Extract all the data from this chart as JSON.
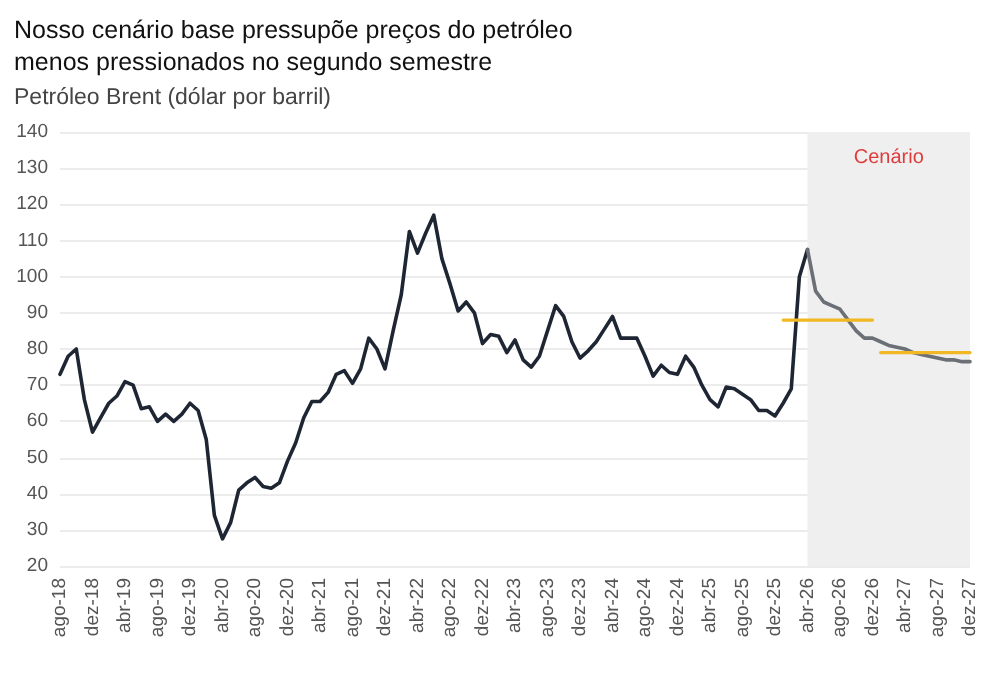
{
  "chart_data": {
    "type": "line",
    "title": "Nosso cenário base pressupõe preços do petróleo menos pressionados no segundo semestre",
    "subtitle": "Petróleo Brent (dólar por barril)",
    "categories": [
      "ago-18",
      null,
      null,
      null,
      "dez-18",
      null,
      null,
      null,
      "abr-19",
      null,
      null,
      null,
      "ago-19",
      null,
      null,
      null,
      "dez-19",
      null,
      null,
      null,
      "abr-20",
      null,
      null,
      null,
      "ago-20",
      null,
      null,
      null,
      "dez-20",
      null,
      null,
      null,
      "abr-21",
      null,
      null,
      null,
      "ago-21",
      null,
      null,
      null,
      "dez-21",
      null,
      null,
      null,
      "abr-22",
      null,
      null,
      null,
      "ago-22",
      null,
      null,
      null,
      "dez-22",
      null,
      null,
      null,
      "abr-23",
      null,
      null,
      null,
      "ago-23",
      null,
      null,
      null,
      "dez-23",
      null,
      null,
      null,
      "abr-24",
      null,
      null,
      null,
      "ago-24",
      null,
      null,
      null,
      "dez-24",
      null,
      null,
      null,
      "abr-25",
      null,
      null,
      null,
      "ago-25",
      null,
      null,
      null,
      "dez-25",
      null,
      null,
      null,
      "abr-26",
      null,
      null,
      null,
      "ago-26",
      null,
      null,
      null,
      "dez-26",
      null,
      null,
      null,
      "abr-27",
      null,
      null,
      null,
      "ago-27",
      null,
      null,
      null,
      "dez-27"
    ],
    "series": [
      {
        "color": "#1f2633",
        "values": [
          73,
          78,
          80,
          66,
          57,
          61,
          65,
          67,
          71,
          70,
          63.5,
          64,
          60,
          62,
          60,
          62,
          65,
          63,
          55,
          34,
          27.5,
          32,
          41,
          43,
          44.5,
          42,
          41.5,
          43,
          49,
          54,
          61,
          65.5,
          65.5,
          68,
          73,
          74,
          70.5,
          74.5,
          83,
          80,
          74.5,
          85,
          95,
          112.5,
          106.5,
          112,
          117,
          105,
          98,
          90.5,
          93,
          90,
          81.5,
          84,
          83.5,
          79,
          82.5,
          77,
          75,
          78,
          85,
          92,
          89,
          82,
          77.5,
          79.5,
          82,
          85.5,
          89,
          83,
          83,
          83,
          78,
          72.5,
          75.5,
          73.5,
          73,
          78,
          75,
          70,
          66,
          64,
          69.5,
          69,
          67.5,
          66,
          63,
          63,
          61.5,
          65,
          69,
          100,
          107.5,
          null,
          null,
          null,
          null,
          null,
          null,
          null,
          null,
          null,
          null,
          null,
          null,
          null,
          null,
          null,
          null,
          null,
          null,
          null,
          null
        ]
      },
      {
        "color": "#6b6f76",
        "values": [
          null,
          null,
          null,
          null,
          null,
          null,
          null,
          null,
          null,
          null,
          null,
          null,
          null,
          null,
          null,
          null,
          null,
          null,
          null,
          null,
          null,
          null,
          null,
          null,
          null,
          null,
          null,
          null,
          null,
          null,
          null,
          null,
          null,
          null,
          null,
          null,
          null,
          null,
          null,
          null,
          null,
          null,
          null,
          null,
          null,
          null,
          null,
          null,
          null,
          null,
          null,
          null,
          null,
          null,
          null,
          null,
          null,
          null,
          null,
          null,
          null,
          null,
          null,
          null,
          null,
          null,
          null,
          null,
          null,
          null,
          null,
          null,
          null,
          null,
          null,
          null,
          null,
          null,
          null,
          null,
          null,
          null,
          null,
          null,
          null,
          null,
          null,
          null,
          null,
          null,
          null,
          null,
          107.5,
          96,
          93,
          92,
          91,
          88,
          85,
          83,
          83,
          82,
          81,
          80.5,
          80,
          79,
          78.5,
          78,
          77.5,
          77,
          77,
          76.5,
          76.5
        ]
      },
      {
        "color": "#f2b824",
        "values": [
          null,
          null,
          null,
          null,
          null,
          null,
          null,
          null,
          null,
          null,
          null,
          null,
          null,
          null,
          null,
          null,
          null,
          null,
          null,
          null,
          null,
          null,
          null,
          null,
          null,
          null,
          null,
          null,
          null,
          null,
          null,
          null,
          null,
          null,
          null,
          null,
          null,
          null,
          null,
          null,
          null,
          null,
          null,
          null,
          null,
          null,
          null,
          null,
          null,
          null,
          null,
          null,
          null,
          null,
          null,
          null,
          null,
          null,
          null,
          null,
          null,
          null,
          null,
          null,
          null,
          null,
          null,
          null,
          null,
          null,
          null,
          null,
          null,
          null,
          null,
          null,
          null,
          null,
          null,
          null,
          null,
          null,
          null,
          null,
          null,
          null,
          null,
          null,
          null,
          88,
          88,
          88,
          88,
          88,
          88,
          88,
          88,
          88,
          88,
          88,
          88,
          null,
          null,
          null,
          null,
          null,
          null,
          null,
          null,
          null,
          null,
          null,
          null
        ]
      },
      {
        "color": "#f2b824",
        "values": [
          null,
          null,
          null,
          null,
          null,
          null,
          null,
          null,
          null,
          null,
          null,
          null,
          null,
          null,
          null,
          null,
          null,
          null,
          null,
          null,
          null,
          null,
          null,
          null,
          null,
          null,
          null,
          null,
          null,
          null,
          null,
          null,
          null,
          null,
          null,
          null,
          null,
          null,
          null,
          null,
          null,
          null,
          null,
          null,
          null,
          null,
          null,
          null,
          null,
          null,
          null,
          null,
          null,
          null,
          null,
          null,
          null,
          null,
          null,
          null,
          null,
          null,
          null,
          null,
          null,
          null,
          null,
          null,
          null,
          null,
          null,
          null,
          null,
          null,
          null,
          null,
          null,
          null,
          null,
          null,
          null,
          null,
          null,
          null,
          null,
          null,
          null,
          null,
          null,
          null,
          null,
          null,
          null,
          null,
          null,
          null,
          null,
          null,
          null,
          null,
          null,
          79,
          79,
          79,
          79,
          79,
          79,
          79,
          79,
          79,
          79,
          79,
          79
        ]
      }
    ],
    "ylim": [
      20,
      140
    ],
    "yticks": [
      20,
      30,
      40,
      50,
      60,
      70,
      80,
      90,
      100,
      110,
      120,
      130,
      140
    ],
    "bands": [
      {
        "axis": "x",
        "from": "abr-26",
        "to": "dez-27",
        "label": "Cenário",
        "color": "#efefef"
      }
    ],
    "grid": "y",
    "marker": "none",
    "line_style": "solid"
  }
}
